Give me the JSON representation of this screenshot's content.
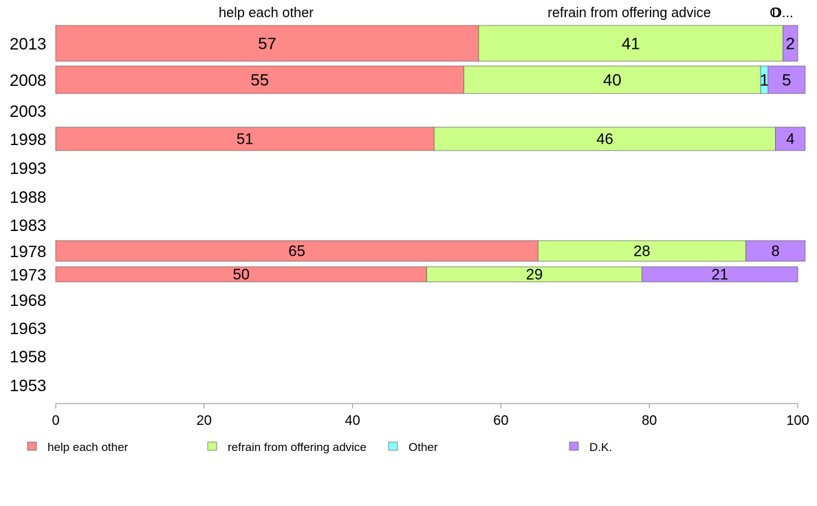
{
  "chart_data": {
    "type": "bar",
    "orientation": "horizontal",
    "stacked": true,
    "categories": [
      "2013",
      "2008",
      "2003",
      "1998",
      "1993",
      "1988",
      "1983",
      "1978",
      "1973",
      "1968",
      "1963",
      "1958",
      "1953"
    ],
    "series": [
      {
        "name": "help each other",
        "color": "#ff8888",
        "values": [
          57,
          55,
          null,
          51,
          null,
          null,
          null,
          65,
          50,
          null,
          null,
          null,
          null
        ]
      },
      {
        "name": "refrain from offering advice",
        "color": "#ccff88",
        "values": [
          41,
          40,
          null,
          46,
          null,
          null,
          null,
          28,
          29,
          null,
          null,
          null,
          null
        ]
      },
      {
        "name": "Other",
        "color": "#88ffff",
        "values": [
          0,
          1,
          null,
          0,
          null,
          null,
          null,
          0,
          0,
          null,
          null,
          null,
          null
        ]
      },
      {
        "name": "D.K.",
        "color": "#bb88ff",
        "values": [
          2,
          5,
          null,
          4,
          null,
          null,
          null,
          8,
          21,
          null,
          null,
          null,
          null
        ]
      }
    ],
    "top_labels": [
      "help each other",
      "refrain from offering advice",
      "O",
      "D..."
    ],
    "xlim": [
      0,
      100
    ],
    "xticks": [
      "0",
      "20",
      "40",
      "60",
      "80",
      "100"
    ],
    "legend_position": "bottom",
    "grid": false
  }
}
